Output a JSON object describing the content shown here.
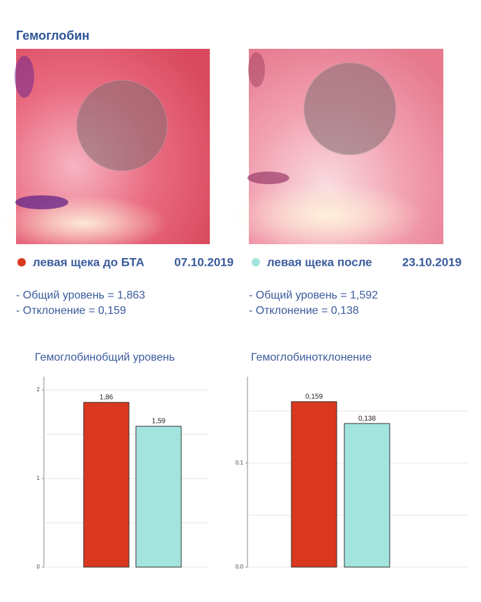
{
  "header": {
    "title": "Гемоглобин"
  },
  "panels": [
    {
      "label": "левая щека до БТА",
      "date": "07.10.2019",
      "color": "#d9381e",
      "stats": [
        "- Общий уровень = 1,863",
        "- Отклонение = 0,159"
      ]
    },
    {
      "label": "левая щека после",
      "date": "23.10.2019",
      "color": "#a3e4de",
      "stats": [
        "- Общий уровень = 1,592",
        "- Отклонение = 0,138"
      ]
    }
  ],
  "chart_data": [
    {
      "type": "bar",
      "title": "Гемоглобинобщий уровень",
      "values": [
        1.86,
        1.59
      ],
      "value_labels": [
        "1,86",
        "1,59"
      ],
      "colors": [
        "#d9381e",
        "#a3e4de"
      ],
      "ylim": [
        0,
        2.15
      ],
      "yticks": [
        0,
        1,
        2
      ],
      "minor_yticks": [
        0.5,
        1.5
      ],
      "grid": true
    },
    {
      "type": "bar",
      "title": "Гемоглобинотклонение",
      "values": [
        0.159,
        0.138
      ],
      "value_labels": [
        "0,159",
        "0,138"
      ],
      "colors": [
        "#d9381e",
        "#a3e4de"
      ],
      "ylim": [
        0,
        0.183
      ],
      "yticks": [
        {
          "value": 0,
          "label": "0.0"
        },
        0.1
      ],
      "minor_yticks": [
        0.05,
        0.15
      ],
      "grid": true
    }
  ]
}
